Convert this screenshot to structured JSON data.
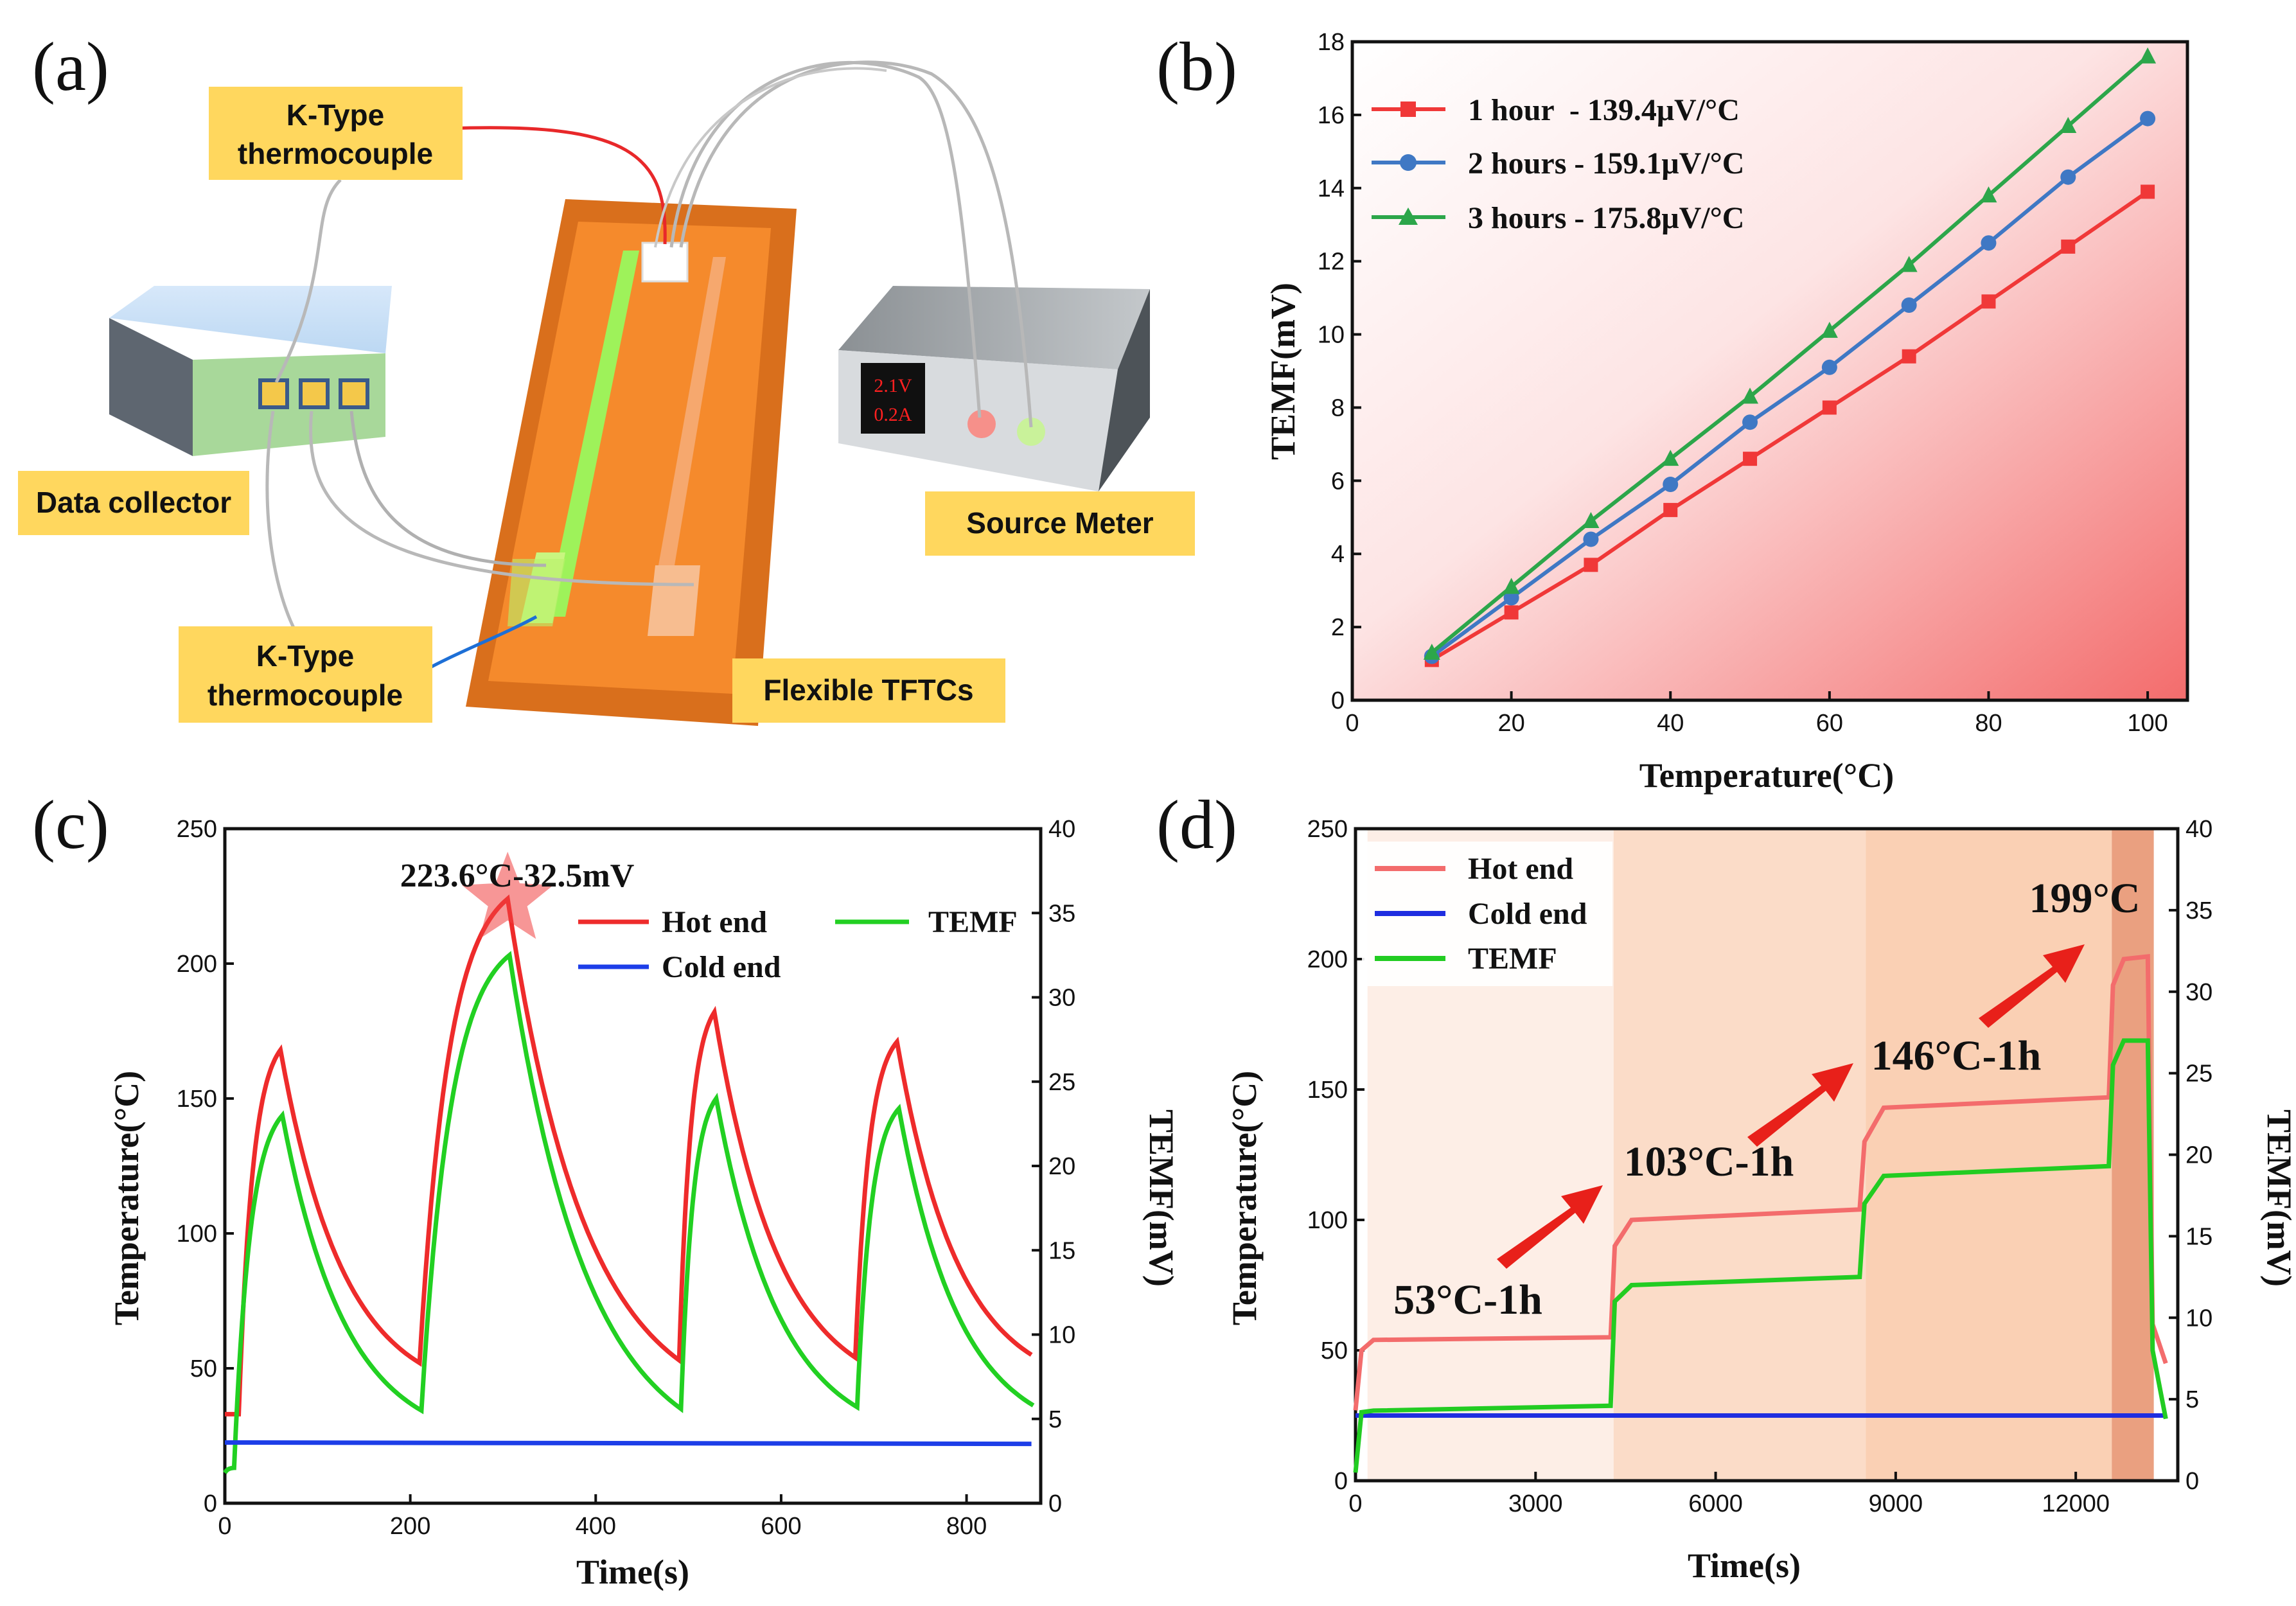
{
  "panels": {
    "a": "(a)",
    "b": "(b)",
    "c": "(c)",
    "d": "(d)"
  },
  "schematic": {
    "labels": {
      "thermocouple_top": [
        "K-Type",
        "thermocouple"
      ],
      "data_collector": "Data collector",
      "thermocouple_bottom": [
        "K-Type",
        "thermocouple"
      ],
      "source_meter": "Source Meter",
      "flexible_tftcs": "Flexible TFTCs"
    },
    "meter_display": [
      "2.1V",
      "0.2A"
    ],
    "colors": {
      "label_box": "#ffd75e",
      "substrate": "#f58a2c",
      "green_leg": "#9ef25a",
      "red_wire": "#e8282a",
      "blue_wire": "#1d6fd6"
    }
  },
  "chart_data": [
    {
      "panel": "b",
      "type": "line",
      "xlabel": "Temperature(°C)",
      "ylabel": "TEMF(mV)",
      "xlim": [
        0,
        105
      ],
      "ylim": [
        0,
        18
      ],
      "xticks": [
        0,
        20,
        40,
        60,
        80,
        100
      ],
      "yticks": [
        0,
        2,
        4,
        6,
        8,
        10,
        12,
        14,
        16,
        18
      ],
      "legend_position": "top-left",
      "grid": false,
      "x": [
        10,
        20,
        30,
        40,
        50,
        60,
        70,
        80,
        90,
        100
      ],
      "series": [
        {
          "name": "1 hour  - 139.4μV/°C",
          "color": "#f03838",
          "marker": "square",
          "values": [
            1.1,
            2.4,
            3.7,
            5.2,
            6.6,
            8.0,
            9.4,
            10.9,
            12.4,
            13.9
          ]
        },
        {
          "name": "2 hours - 159.1μV/°C",
          "color": "#3f78c4",
          "marker": "circle",
          "values": [
            1.2,
            2.8,
            4.4,
            5.9,
            7.6,
            9.1,
            10.8,
            12.5,
            14.3,
            15.9
          ]
        },
        {
          "name": "3 hours - 175.8μV/°C",
          "color": "#2ca64a",
          "marker": "triangle",
          "values": [
            1.3,
            3.1,
            4.9,
            6.6,
            8.3,
            10.1,
            11.9,
            13.8,
            15.7,
            17.6
          ]
        }
      ]
    },
    {
      "panel": "c",
      "type": "line",
      "xlabel": "Time(s)",
      "ylabel": "Temperature(°C)",
      "ylabel_right": "TEMF(mV)",
      "xlim": [
        0,
        880
      ],
      "ylim": [
        0,
        250
      ],
      "ylim_right": [
        0,
        40
      ],
      "xticks": [
        0,
        200,
        400,
        600,
        800
      ],
      "yticks": [
        0,
        50,
        100,
        150,
        200,
        250
      ],
      "yticks_right": [
        0,
        5,
        10,
        15,
        20,
        25,
        30,
        35,
        40
      ],
      "annotation": "223.6°C-32.5mV",
      "annotation_point": [
        305,
        223.6
      ],
      "legend_position": "top-right",
      "series": [
        {
          "name": "Hot end",
          "color": "#ee2b2b",
          "axis": "left",
          "x": [
            0,
            15,
            60,
            210,
            305,
            490,
            528,
            680,
            725,
            870
          ],
          "values": [
            33,
            33,
            168,
            52,
            224,
            53,
            182,
            54,
            171,
            55
          ]
        },
        {
          "name": "TEMF",
          "color": "#22d022",
          "axis": "right",
          "x": [
            0,
            10,
            62,
            212,
            307,
            492,
            530,
            682,
            727,
            872
          ],
          "values": [
            1.8,
            2.1,
            23.0,
            5.5,
            32.5,
            5.6,
            24.0,
            5.7,
            23.4,
            5.8
          ]
        },
        {
          "name": "Cold end",
          "color": "#1d3ee8",
          "axis": "left",
          "x": [
            0,
            870
          ],
          "values": [
            22.5,
            22.0
          ]
        }
      ]
    },
    {
      "panel": "d",
      "type": "line",
      "xlabel": "Time(s)",
      "ylabel": "Temperature(°C)",
      "ylabel_right": "TEMF(mV)",
      "xlim": [
        0,
        13700
      ],
      "ylim": [
        0,
        250
      ],
      "ylim_right": [
        0,
        40
      ],
      "xticks": [
        0,
        3000,
        6000,
        9000,
        12000
      ],
      "yticks": [
        0,
        50,
        100,
        150,
        200,
        250
      ],
      "yticks_right": [
        0,
        5,
        10,
        15,
        20,
        25,
        30,
        35,
        40
      ],
      "legend_position": "top-left",
      "annotations": [
        "53°C-1h",
        "103°C-1h",
        "146°C-1h",
        "199°C"
      ],
      "shaded_stages": [
        {
          "x": [
            200,
            4300
          ],
          "color": "#fdeee6"
        },
        {
          "x": [
            4300,
            8500
          ],
          "color": "#fbdcc8"
        },
        {
          "x": [
            8500,
            12600
          ],
          "color": "#fad0b4"
        },
        {
          "x": [
            12600,
            13300
          ],
          "color": "#eaa080"
        }
      ],
      "series": [
        {
          "name": "Hot end",
          "color": "#f36c6c",
          "axis": "left",
          "x": [
            0,
            100,
            300,
            4250,
            4320,
            4600,
            8400,
            8480,
            8800,
            12550,
            12620,
            12800,
            13200,
            13280,
            13500
          ],
          "values": [
            27,
            50,
            54,
            55,
            90,
            100,
            104,
            130,
            143,
            147,
            190,
            200,
            201,
            60,
            45
          ]
        },
        {
          "name": "Cold end",
          "color": "#1f2ee0",
          "axis": "left",
          "x": [
            0,
            13500
          ],
          "values": [
            25,
            25
          ]
        },
        {
          "name": "TEMF",
          "color": "#22cc22",
          "axis": "right",
          "x": [
            0,
            100,
            300,
            4250,
            4320,
            4600,
            8400,
            8480,
            8800,
            12550,
            12620,
            12800,
            13200,
            13280,
            13500
          ],
          "values": [
            0.5,
            4.2,
            4.3,
            4.6,
            11.0,
            12.0,
            12.5,
            17.0,
            18.7,
            19.3,
            25.5,
            27.0,
            27.0,
            8.0,
            3.8
          ]
        }
      ]
    }
  ]
}
